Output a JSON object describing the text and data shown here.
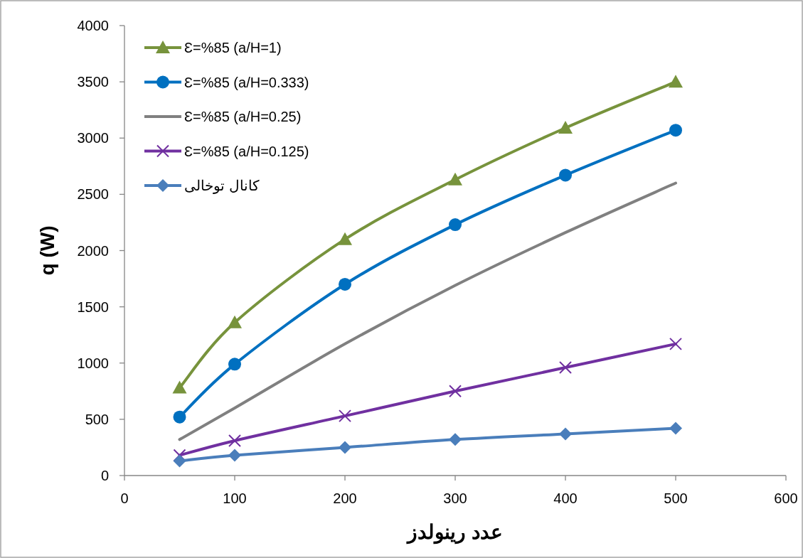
{
  "chart_data": {
    "type": "line",
    "xlabel": "عدد رینولدز",
    "ylabel": "q (W)",
    "x": [
      50,
      100,
      200,
      300,
      400,
      500
    ],
    "series": [
      {
        "name": "Ɛ=%85 (a/H=1)",
        "color": "#77933c",
        "marker": "triangle",
        "values": [
          780,
          1360,
          2100,
          2630,
          3090,
          3500
        ]
      },
      {
        "name": "Ɛ=%85 (a/H=0.333)",
        "color": "#0070c0",
        "marker": "circle",
        "values": [
          520,
          990,
          1700,
          2230,
          2670,
          3070
        ]
      },
      {
        "name": "Ɛ=%85 (a/H=0.25)",
        "color": "#808080",
        "marker": "none",
        "values": [
          320,
          600,
          1170,
          1690,
          2160,
          2600
        ]
      },
      {
        "name": "Ɛ=%85 (a/H=0.125)",
        "color": "#7030a0",
        "marker": "cross",
        "values": [
          180,
          310,
          530,
          750,
          960,
          1170
        ]
      },
      {
        "name": "کانال توخالی",
        "color": "#4a7ebb",
        "marker": "diamond",
        "values": [
          130,
          180,
          250,
          320,
          370,
          420
        ]
      }
    ],
    "xlim": [
      0,
      600
    ],
    "xticks": [
      0,
      100,
      200,
      300,
      400,
      500,
      600
    ],
    "ylim": [
      0,
      4000
    ],
    "yticks": [
      0,
      500,
      1000,
      1500,
      2000,
      2500,
      3000,
      3500,
      4000
    ],
    "grid": false,
    "legend": "top left",
    "line_style": "solid"
  }
}
